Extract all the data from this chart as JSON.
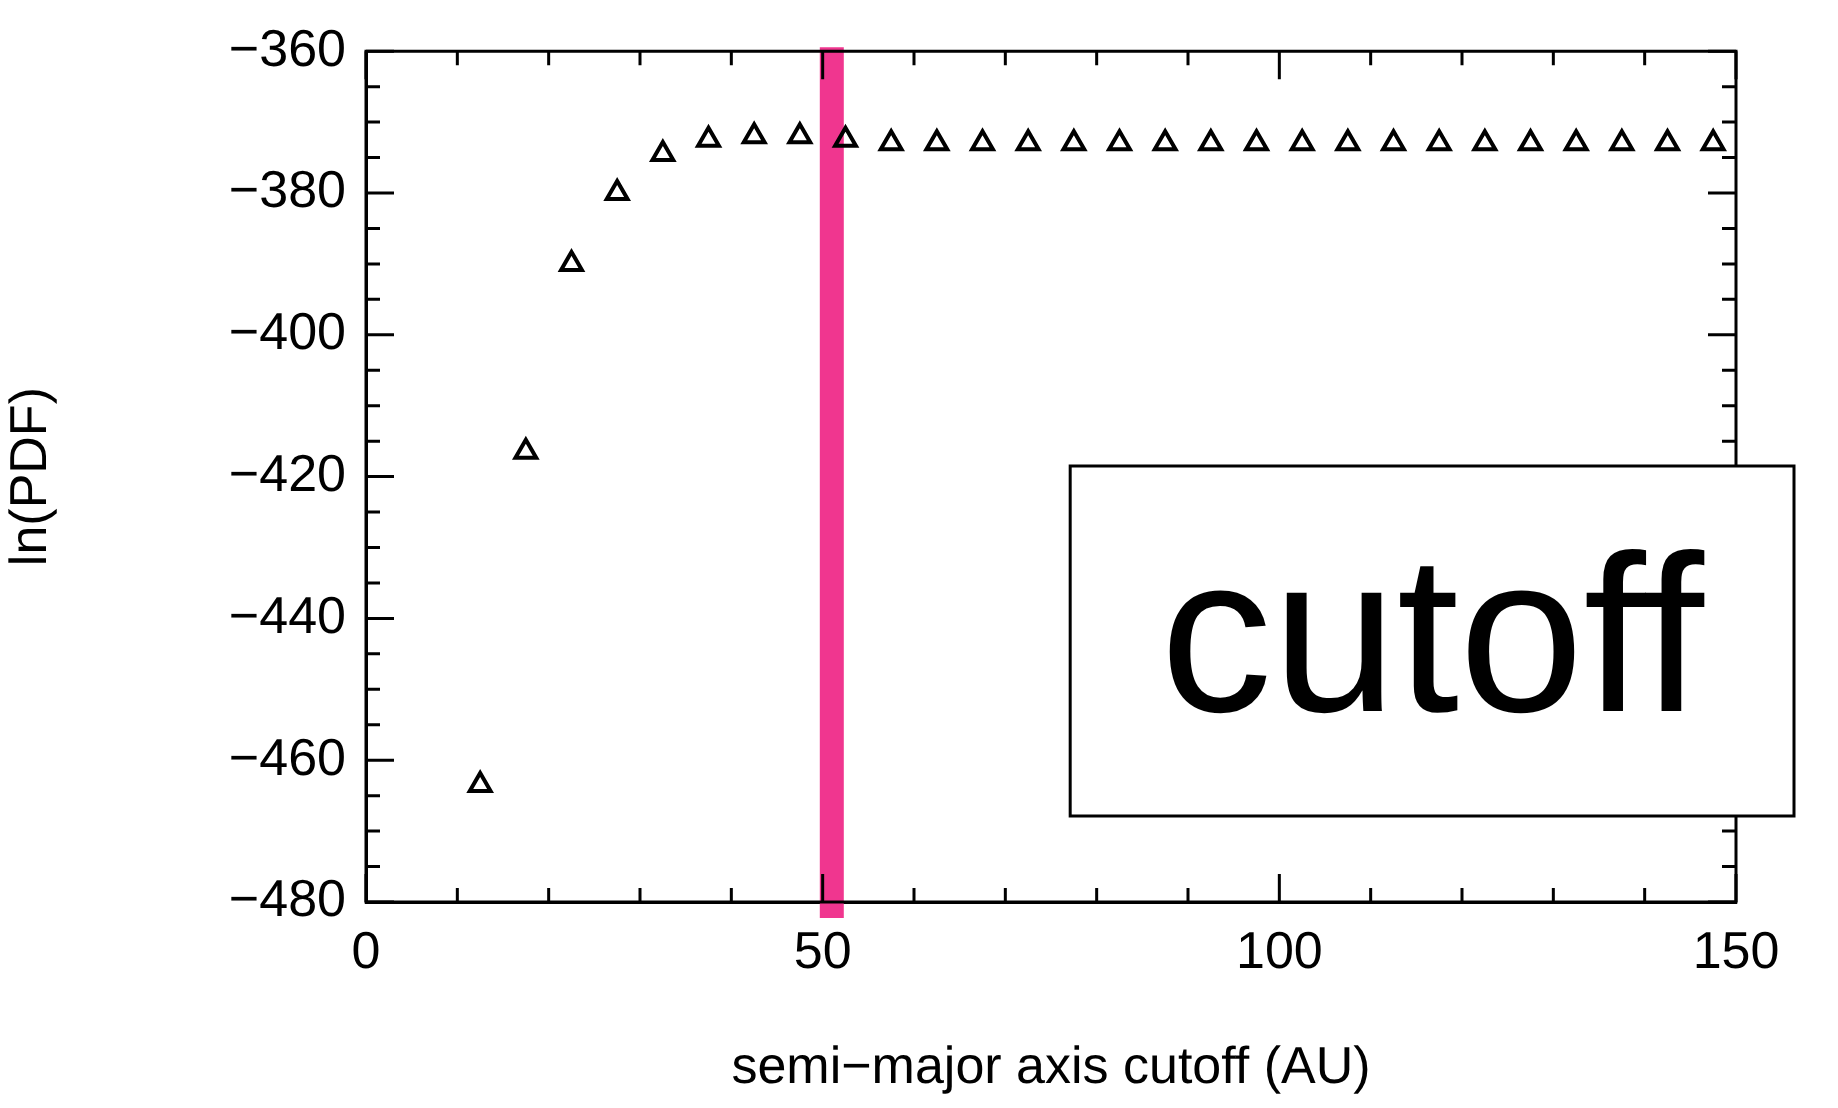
{
  "chart_data": {
    "type": "scatter",
    "xlabel": "semi−major axis cutoff (AU)",
    "ylabel": "ln(PDF)",
    "x": [
      12.5,
      17.5,
      22.5,
      27.5,
      32.5,
      37.5,
      42.5,
      47.5,
      52.5,
      57.5,
      62.5,
      67.5,
      72.5,
      77.5,
      82.5,
      87.5,
      92.5,
      97.5,
      102.5,
      107.5,
      112.5,
      117.5,
      122.5,
      127.5,
      132.5,
      137.5,
      142.5,
      147.5
    ],
    "series": [
      {
        "color": "#000000",
        "values": [
          -463.5,
          -416.5,
          -390,
          -380,
          -374.5,
          -372.5,
          -372,
          -372,
          -372.5,
          -373,
          -373,
          -373,
          -373,
          -373,
          -373,
          -373,
          -373,
          -373,
          -373,
          -373,
          -373,
          -373,
          -373,
          -373,
          -373,
          -373,
          -373,
          -373
        ]
      }
    ],
    "marker": "triangle",
    "legend": false,
    "grid": false,
    "xlim": [
      0,
      150
    ],
    "xticks": [
      0,
      {
        "value": 10,
        "label": null
      },
      {
        "value": 20,
        "label": null
      },
      {
        "value": 30,
        "label": null
      },
      {
        "value": 40,
        "label": null
      },
      50,
      {
        "value": 60,
        "label": null
      },
      {
        "value": 70,
        "label": null
      },
      {
        "value": 80,
        "label": null
      },
      {
        "value": 90,
        "label": null
      },
      100,
      {
        "value": 110,
        "label": null
      },
      {
        "value": 120,
        "label": null
      },
      {
        "value": 130,
        "label": null
      },
      {
        "value": 140,
        "label": null
      },
      150
    ],
    "ylim": [
      -480,
      -360
    ],
    "yticks": [
      {
        "value": -480,
        "label": "−480"
      },
      {
        "value": -475,
        "label": null
      },
      {
        "value": -470,
        "label": null
      },
      {
        "value": -465,
        "label": null
      },
      {
        "value": -460,
        "label": "−460"
      },
      {
        "value": -455,
        "label": null
      },
      {
        "value": -450,
        "label": null
      },
      {
        "value": -445,
        "label": null
      },
      {
        "value": -440,
        "label": "−440"
      },
      {
        "value": -435,
        "label": null
      },
      {
        "value": -430,
        "label": null
      },
      {
        "value": -425,
        "label": null
      },
      {
        "value": -420,
        "label": "−420"
      },
      {
        "value": -415,
        "label": null
      },
      {
        "value": -410,
        "label": null
      },
      {
        "value": -405,
        "label": null
      },
      {
        "value": -400,
        "label": "−400"
      },
      {
        "value": -395,
        "label": null
      },
      {
        "value": -390,
        "label": null
      },
      {
        "value": -385,
        "label": null
      },
      {
        "value": -380,
        "label": "−380"
      },
      {
        "value": -375,
        "label": null
      },
      {
        "value": -370,
        "label": null
      },
      {
        "value": -365,
        "label": null
      },
      {
        "value": -360,
        "label": "−360"
      }
    ],
    "ref_lines": [
      {
        "axis": "x",
        "value": 51,
        "color": "#f0368f"
      }
    ],
    "annotations": [
      "cutoff"
    ]
  }
}
